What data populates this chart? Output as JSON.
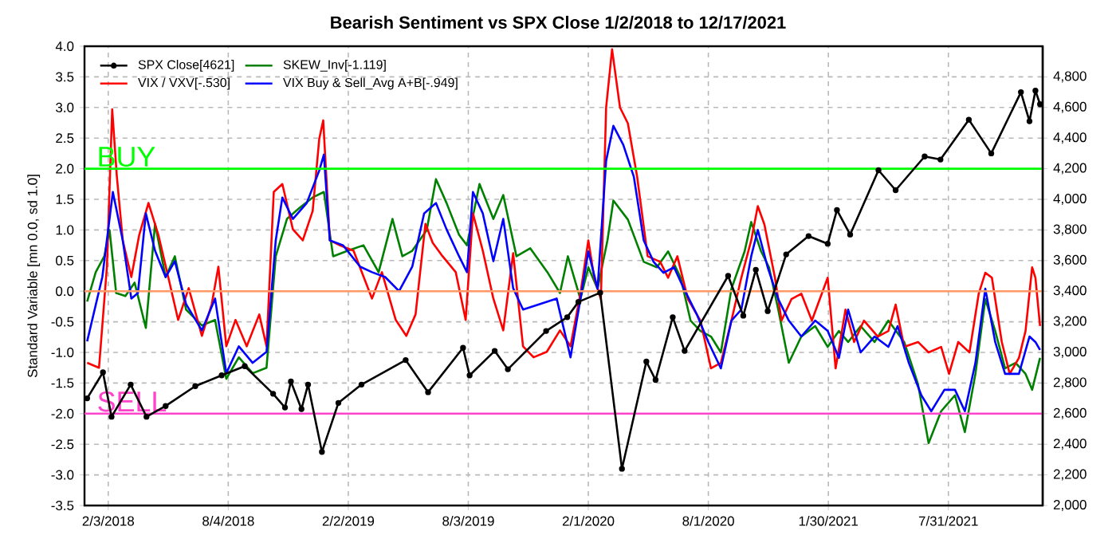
{
  "chart_data": {
    "type": "line",
    "title": "Bearish Sentiment vs SPX Close 1/2/2018 to 12/17/2021",
    "ylabel": "Standard Variable [mn 0.0, sd 1.0]",
    "xlim": [
      "2017-12-29",
      "2021-12-21"
    ],
    "xticks": [
      {
        "value": "2018-02-03",
        "label": "2/3/2018"
      },
      {
        "value": "2018-08-04",
        "label": "8/4/2018"
      },
      {
        "value": "2019-02-02",
        "label": "2/2/2019"
      },
      {
        "value": "2019-08-03",
        "label": "8/3/2019"
      },
      {
        "value": "2020-02-01",
        "label": "2/1/2020"
      },
      {
        "value": "2020-08-01",
        "label": "8/1/2020"
      },
      {
        "value": "2021-01-30",
        "label": "1/30/2021"
      },
      {
        "value": "2021-07-31",
        "label": "7/31/2021"
      }
    ],
    "ylim": [
      -3.5,
      4.0
    ],
    "yticks": [
      {
        "value": -3.5,
        "label": "-3.5"
      },
      {
        "value": -3,
        "label": "-3.0"
      },
      {
        "value": -2.5,
        "label": "-2.5"
      },
      {
        "value": -2,
        "label": "-2.0"
      },
      {
        "value": -1.5,
        "label": "-1.5"
      },
      {
        "value": -1,
        "label": "-1.0"
      },
      {
        "value": -0.5,
        "label": "-0.5"
      },
      {
        "value": 0,
        "label": "0.0"
      },
      {
        "value": 0.5,
        "label": "0.5"
      },
      {
        "value": 1,
        "label": "1.0"
      },
      {
        "value": 1.5,
        "label": "1.5"
      },
      {
        "value": 2,
        "label": "2.0"
      },
      {
        "value": 2.5,
        "label": "2.5"
      },
      {
        "value": 3,
        "label": "3.0"
      },
      {
        "value": 3.5,
        "label": "3.5"
      },
      {
        "value": 4,
        "label": "4.0"
      }
    ],
    "y2lim": [
      2000,
      5000
    ],
    "y2ticks": [
      {
        "value": 2000,
        "label": "2,000"
      },
      {
        "value": 2200,
        "label": "2,200"
      },
      {
        "value": 2400,
        "label": "2,400"
      },
      {
        "value": 2600,
        "label": "2,600"
      },
      {
        "value": 2800,
        "label": "2,800"
      },
      {
        "value": 3000,
        "label": "3,000"
      },
      {
        "value": 3200,
        "label": "3,200"
      },
      {
        "value": 3400,
        "label": "3,400"
      },
      {
        "value": 3600,
        "label": "3,600"
      },
      {
        "value": 3800,
        "label": "3,800"
      },
      {
        "value": 4000,
        "label": "4,000"
      },
      {
        "value": 4200,
        "label": "4,200"
      },
      {
        "value": 4400,
        "label": "4,400"
      },
      {
        "value": 4600,
        "label": "4,600"
      },
      {
        "value": 4800,
        "label": "4,800"
      }
    ],
    "grid": true,
    "legend": "top left",
    "ref_lines": [
      {
        "axis": "y",
        "value": 2,
        "label": "BUY",
        "color": "#00ff00"
      },
      {
        "axis": "y",
        "value": 0,
        "color": "#ff9966"
      },
      {
        "axis": "y",
        "value": -2,
        "label": "SELL",
        "color": "#ff44cc"
      }
    ],
    "series": [
      {
        "name": "SPX Close[4621]",
        "color": "#000000",
        "axis": "y2",
        "marker": "circle",
        "x": [
          "2018-01-02",
          "2018-01-26",
          "2018-02-08",
          "2018-03-09",
          "2018-04-02",
          "2018-05-01",
          "2018-06-15",
          "2018-07-25",
          "2018-08-29",
          "2018-10-11",
          "2018-10-29",
          "2018-11-07",
          "2018-11-23",
          "2018-12-03",
          "2018-12-24",
          "2019-01-18",
          "2019-02-22",
          "2019-04-30",
          "2019-06-03",
          "2019-07-26",
          "2019-08-05",
          "2019-09-12",
          "2019-10-02",
          "2019-11-29",
          "2019-12-31",
          "2020-01-17",
          "2020-02-19",
          "2020-03-23",
          "2020-04-29",
          "2020-05-13",
          "2020-06-08",
          "2020-06-26",
          "2020-08-31",
          "2020-09-23",
          "2020-10-12",
          "2020-10-30",
          "2020-11-27",
          "2020-12-31",
          "2021-01-29",
          "2021-02-12",
          "2021-03-04",
          "2021-04-16",
          "2021-05-12",
          "2021-06-25",
          "2021-07-19",
          "2021-08-31",
          "2021-10-04",
          "2021-11-18",
          "2021-12-01",
          "2021-12-10",
          "2021-12-17"
        ],
        "values": [
          2700,
          2870,
          2580,
          2790,
          2580,
          2650,
          2780,
          2850,
          2910,
          2730,
          2640,
          2810,
          2630,
          2790,
          2350,
          2670,
          2790,
          2950,
          2740,
          3030,
          2850,
          3010,
          2890,
          3140,
          3230,
          3330,
          3390,
          2240,
          2940,
          2820,
          3230,
          3010,
          3500,
          3240,
          3540,
          3270,
          3640,
          3760,
          3710,
          3930,
          3770,
          4190,
          4060,
          4280,
          4260,
          4520,
          4300,
          4700,
          4510,
          4710,
          4621
        ]
      },
      {
        "name": "SKEW_Inv[-1.119]",
        "color": "#008000",
        "x": [
          "2018-01-02",
          "2018-01-15",
          "2018-01-28",
          "2018-02-05",
          "2018-02-15",
          "2018-03-01",
          "2018-03-15",
          "2018-04-01",
          "2018-04-15",
          "2018-05-01",
          "2018-05-15",
          "2018-06-01",
          "2018-06-25",
          "2018-07-15",
          "2018-08-01",
          "2018-08-20",
          "2018-09-10",
          "2018-10-01",
          "2018-10-15",
          "2018-11-01",
          "2018-11-20",
          "2018-12-10",
          "2018-12-27",
          "2019-01-10",
          "2019-02-01",
          "2019-02-25",
          "2019-03-20",
          "2019-04-10",
          "2019-04-25",
          "2019-05-10",
          "2019-06-01",
          "2019-06-15",
          "2019-07-01",
          "2019-07-20",
          "2019-08-01",
          "2019-08-20",
          "2019-09-10",
          "2019-09-25",
          "2019-10-15",
          "2019-11-05",
          "2019-12-01",
          "2019-12-20",
          "2020-01-01",
          "2020-01-20",
          "2020-02-01",
          "2020-02-15",
          "2020-03-01",
          "2020-03-10",
          "2020-04-01",
          "2020-04-25",
          "2020-05-15",
          "2020-06-01",
          "2020-06-20",
          "2020-07-05",
          "2020-07-20",
          "2020-08-05",
          "2020-08-20",
          "2020-09-05",
          "2020-09-25",
          "2020-10-05",
          "2020-10-20",
          "2020-11-01",
          "2020-11-15",
          "2020-12-01",
          "2020-12-20",
          "2021-01-10",
          "2021-01-29",
          "2021-02-15",
          "2021-03-01",
          "2021-03-20",
          "2021-04-10",
          "2021-05-01",
          "2021-05-25",
          "2021-06-15",
          "2021-07-01",
          "2021-07-20",
          "2021-08-10",
          "2021-08-25",
          "2021-09-10",
          "2021-09-25",
          "2021-10-10",
          "2021-10-25",
          "2021-11-10",
          "2021-11-25",
          "2021-12-05",
          "2021-12-17"
        ],
        "values": [
          -0.17,
          0.31,
          0.57,
          1.0,
          -0.03,
          -0.08,
          0.14,
          -0.6,
          1.1,
          0.23,
          0.57,
          -0.3,
          -0.56,
          -0.47,
          -1.43,
          -1.08,
          -1.34,
          -1.25,
          0.57,
          1.18,
          1.36,
          1.53,
          1.62,
          0.57,
          0.66,
          0.75,
          0.31,
          1.18,
          0.57,
          0.66,
          1.0,
          1.83,
          1.44,
          0.92,
          0.75,
          1.75,
          1.18,
          1.57,
          0.57,
          0.7,
          0.31,
          -0.03,
          0.57,
          -0.13,
          0.39,
          0.04,
          0.83,
          1.48,
          1.17,
          0.48,
          0.39,
          0.65,
          0.22,
          -0.48,
          -0.65,
          -0.74,
          -1.0,
          0.04,
          0.65,
          1.13,
          0.65,
          0.39,
          -0.3,
          -1.17,
          -0.74,
          -0.57,
          -0.91,
          -0.65,
          -0.83,
          -0.57,
          -0.83,
          -0.48,
          -0.83,
          -1.52,
          -2.48,
          -1.96,
          -1.7,
          -2.3,
          -1.35,
          -0.13,
          -0.65,
          -1.26,
          -1.17,
          -1.35,
          -1.61,
          -1.09
        ]
      },
      {
        "name": "VIX / VXV[-.530]",
        "color": "#ff0000",
        "x": [
          "2018-01-02",
          "2018-01-20",
          "2018-02-01",
          "2018-02-09",
          "2018-02-16",
          "2018-02-25",
          "2018-03-10",
          "2018-03-22",
          "2018-04-05",
          "2018-04-20",
          "2018-05-05",
          "2018-05-20",
          "2018-06-05",
          "2018-06-25",
          "2018-07-10",
          "2018-07-20",
          "2018-08-01",
          "2018-08-15",
          "2018-09-01",
          "2018-09-20",
          "2018-10-01",
          "2018-10-12",
          "2018-10-25",
          "2018-11-10",
          "2018-11-25",
          "2018-12-10",
          "2018-12-20",
          "2018-12-26",
          "2019-01-05",
          "2019-01-20",
          "2019-02-10",
          "2019-03-10",
          "2019-03-25",
          "2019-04-15",
          "2019-05-01",
          "2019-05-15",
          "2019-05-30",
          "2019-06-10",
          "2019-06-25",
          "2019-07-15",
          "2019-07-30",
          "2019-08-10",
          "2019-08-25",
          "2019-09-10",
          "2019-09-25",
          "2019-10-10",
          "2019-10-25",
          "2019-11-10",
          "2019-11-30",
          "2019-12-20",
          "2020-01-05",
          "2020-01-20",
          "2020-02-01",
          "2020-02-10",
          "2020-02-20",
          "2020-02-28",
          "2020-03-08",
          "2020-03-20",
          "2020-04-01",
          "2020-04-15",
          "2020-05-01",
          "2020-05-20",
          "2020-06-01",
          "2020-06-15",
          "2020-07-01",
          "2020-07-20",
          "2020-08-05",
          "2020-08-20",
          "2020-09-05",
          "2020-09-20",
          "2020-10-05",
          "2020-10-15",
          "2020-10-25",
          "2020-11-10",
          "2020-11-20",
          "2020-12-05",
          "2020-12-20",
          "2021-01-05",
          "2021-01-29",
          "2021-02-10",
          "2021-02-25",
          "2021-03-10",
          "2021-03-25",
          "2021-04-15",
          "2021-05-01",
          "2021-05-12",
          "2021-05-25",
          "2021-06-15",
          "2021-07-01",
          "2021-07-20",
          "2021-08-01",
          "2021-08-15",
          "2021-09-01",
          "2021-09-15",
          "2021-09-25",
          "2021-10-05",
          "2021-10-20",
          "2021-11-01",
          "2021-11-15",
          "2021-11-25",
          "2021-12-05",
          "2021-12-10",
          "2021-12-17"
        ],
        "values": [
          -1.17,
          -1.25,
          0.4,
          2.97,
          1.88,
          0.83,
          0.23,
          0.92,
          1.44,
          0.92,
          0.23,
          -0.47,
          0.05,
          -0.73,
          -0.21,
          0.4,
          -0.9,
          -0.47,
          -0.9,
          -0.38,
          -0.9,
          1.62,
          1.75,
          1.01,
          0.83,
          1.31,
          2.49,
          2.79,
          0.83,
          0.75,
          0.66,
          -0.12,
          0.31,
          -0.47,
          -0.73,
          -0.38,
          1.1,
          0.79,
          0.57,
          0.31,
          -0.47,
          1.27,
          0.66,
          -0.12,
          -0.64,
          0.62,
          -0.9,
          -1.08,
          -0.99,
          -0.64,
          -0.9,
          -0.04,
          0.83,
          0.22,
          -0.13,
          3.0,
          3.95,
          3.0,
          2.74,
          1.87,
          0.57,
          0.48,
          0.22,
          0.57,
          -0.13,
          -0.48,
          -1.26,
          -1.17,
          -0.48,
          0.22,
          0.83,
          1.39,
          1.09,
          0.22,
          -0.48,
          -0.13,
          -0.04,
          -0.48,
          0.22,
          -1.26,
          -0.3,
          -0.83,
          -0.48,
          -0.74,
          -0.65,
          -0.22,
          -0.91,
          -0.83,
          -1.0,
          -0.91,
          -1.35,
          -0.83,
          -1.0,
          -0.04,
          0.3,
          0.22,
          -0.83,
          -1.35,
          -1.09,
          -0.65,
          0.39,
          0.22,
          -0.57
        ]
      },
      {
        "name": "VIX Buy & Sell_Avg A+B[-.949]",
        "color": "#0000ff",
        "x": [
          "2018-01-02",
          "2018-01-25",
          "2018-02-10",
          "2018-02-25",
          "2018-03-10",
          "2018-03-20",
          "2018-04-01",
          "2018-04-15",
          "2018-05-01",
          "2018-05-15",
          "2018-06-01",
          "2018-06-25",
          "2018-07-15",
          "2018-08-01",
          "2018-08-20",
          "2018-09-10",
          "2018-10-01",
          "2018-10-15",
          "2018-10-25",
          "2018-11-10",
          "2018-12-01",
          "2018-12-20",
          "2018-12-27",
          "2019-01-05",
          "2019-01-25",
          "2019-02-20",
          "2019-03-10",
          "2019-03-30",
          "2019-04-20",
          "2019-05-10",
          "2019-05-28",
          "2019-06-15",
          "2019-07-01",
          "2019-07-20",
          "2019-08-01",
          "2019-08-10",
          "2019-08-25",
          "2019-09-10",
          "2019-09-25",
          "2019-10-10",
          "2019-10-25",
          "2019-11-20",
          "2019-12-15",
          "2020-01-05",
          "2020-01-20",
          "2020-02-01",
          "2020-02-15",
          "2020-02-28",
          "2020-03-10",
          "2020-03-25",
          "2020-04-10",
          "2020-04-25",
          "2020-05-10",
          "2020-05-25",
          "2020-06-10",
          "2020-06-25",
          "2020-07-15",
          "2020-08-01",
          "2020-08-20",
          "2020-09-05",
          "2020-09-20",
          "2020-10-05",
          "2020-10-15",
          "2020-10-30",
          "2020-11-15",
          "2020-12-01",
          "2020-12-20",
          "2021-01-10",
          "2021-01-29",
          "2021-02-15",
          "2021-03-01",
          "2021-03-20",
          "2021-04-10",
          "2021-05-01",
          "2021-05-15",
          "2021-06-01",
          "2021-06-20",
          "2021-07-05",
          "2021-07-25",
          "2021-08-10",
          "2021-08-25",
          "2021-09-10",
          "2021-09-25",
          "2021-10-10",
          "2021-10-25",
          "2021-11-15",
          "2021-12-01",
          "2021-12-10",
          "2021-12-17"
        ],
        "values": [
          -0.82,
          0.23,
          1.62,
          0.83,
          -0.12,
          -0.03,
          1.27,
          0.66,
          0.23,
          0.49,
          -0.21,
          -0.64,
          -0.12,
          -1.34,
          -0.9,
          -1.17,
          -0.99,
          0.83,
          1.53,
          1.18,
          1.44,
          1.97,
          2.23,
          0.83,
          0.75,
          0.4,
          0.31,
          0.23,
          0.0,
          0.4,
          1.27,
          1.44,
          1.01,
          0.57,
          0.31,
          1.62,
          1.27,
          0.49,
          1.18,
          0.05,
          -0.3,
          -0.21,
          -0.12,
          -1.08,
          -0.13,
          0.65,
          0.04,
          2.13,
          2.7,
          2.39,
          1.87,
          0.83,
          0.48,
          0.3,
          0.39,
          0.04,
          -0.39,
          -0.83,
          -1.26,
          -0.48,
          -0.3,
          0.57,
          1.0,
          0.39,
          -0.13,
          -0.48,
          -0.74,
          -0.48,
          -0.65,
          -1.09,
          -0.3,
          -1.0,
          -0.74,
          -0.91,
          -0.57,
          -1.17,
          -1.7,
          -1.96,
          -1.61,
          -1.61,
          -1.96,
          -1.17,
          0.04,
          -0.83,
          -1.35,
          -1.35,
          -0.74,
          -0.83,
          -0.96
        ]
      }
    ]
  }
}
